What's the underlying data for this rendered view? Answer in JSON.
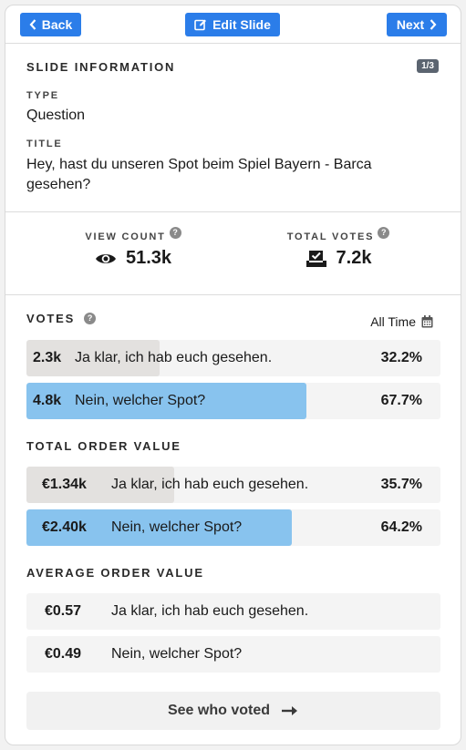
{
  "toolbar": {
    "back_label": "Back",
    "edit_label": "Edit Slide",
    "next_label": "Next"
  },
  "slide_info": {
    "heading": "SLIDE INFORMATION",
    "page_badge": "1/3",
    "type_label": "TYPE",
    "type_value": "Question",
    "title_label": "TITLE",
    "title_value": "Hey, hast du unseren Spot beim Spiel Bayern - Barca gesehen?"
  },
  "stats": {
    "view_count_label": "VIEW COUNT",
    "view_count_value": "51.3k",
    "total_votes_label": "TOTAL VOTES",
    "total_votes_value": "7.2k",
    "help_glyph": "?"
  },
  "votes": {
    "heading": "VOTES",
    "help_glyph": "?",
    "period_label": "All Time",
    "rows": [
      {
        "count": "2.3k",
        "answer": "Ja klar, ich hab euch gesehen.",
        "percent": "32.2%",
        "fill": 0.322,
        "color": "#e3e1df"
      },
      {
        "count": "4.8k",
        "answer": "Nein, welcher Spot?",
        "percent": "67.7%",
        "fill": 0.677,
        "color": "#88c3ee"
      }
    ]
  },
  "total_order_value": {
    "heading": "TOTAL ORDER VALUE",
    "rows": [
      {
        "value": "€1.34k",
        "answer": "Ja klar, ich hab euch gesehen.",
        "percent": "35.7%",
        "fill": 0.357,
        "color": "#e3e1df"
      },
      {
        "value": "€2.40k",
        "answer": "Nein, welcher Spot?",
        "percent": "64.2%",
        "fill": 0.642,
        "color": "#88c3ee"
      }
    ]
  },
  "average_order_value": {
    "heading": "AVERAGE ORDER VALUE",
    "rows": [
      {
        "value": "€0.57",
        "answer": "Ja klar, ich hab euch gesehen."
      },
      {
        "value": "€0.49",
        "answer": "Nein, welcher Spot?"
      }
    ]
  },
  "footer": {
    "see_who_voted_label": "See who voted"
  },
  "colors": {
    "accent": "#2b7de9",
    "bar_primary": "#88c3ee",
    "bar_secondary": "#e3e1df"
  },
  "icons": [
    "chevron-left-icon",
    "edit-icon",
    "chevron-right-icon",
    "help-icon",
    "eye-icon",
    "ballot-box-icon",
    "calendar-icon",
    "arrow-right-icon"
  ]
}
